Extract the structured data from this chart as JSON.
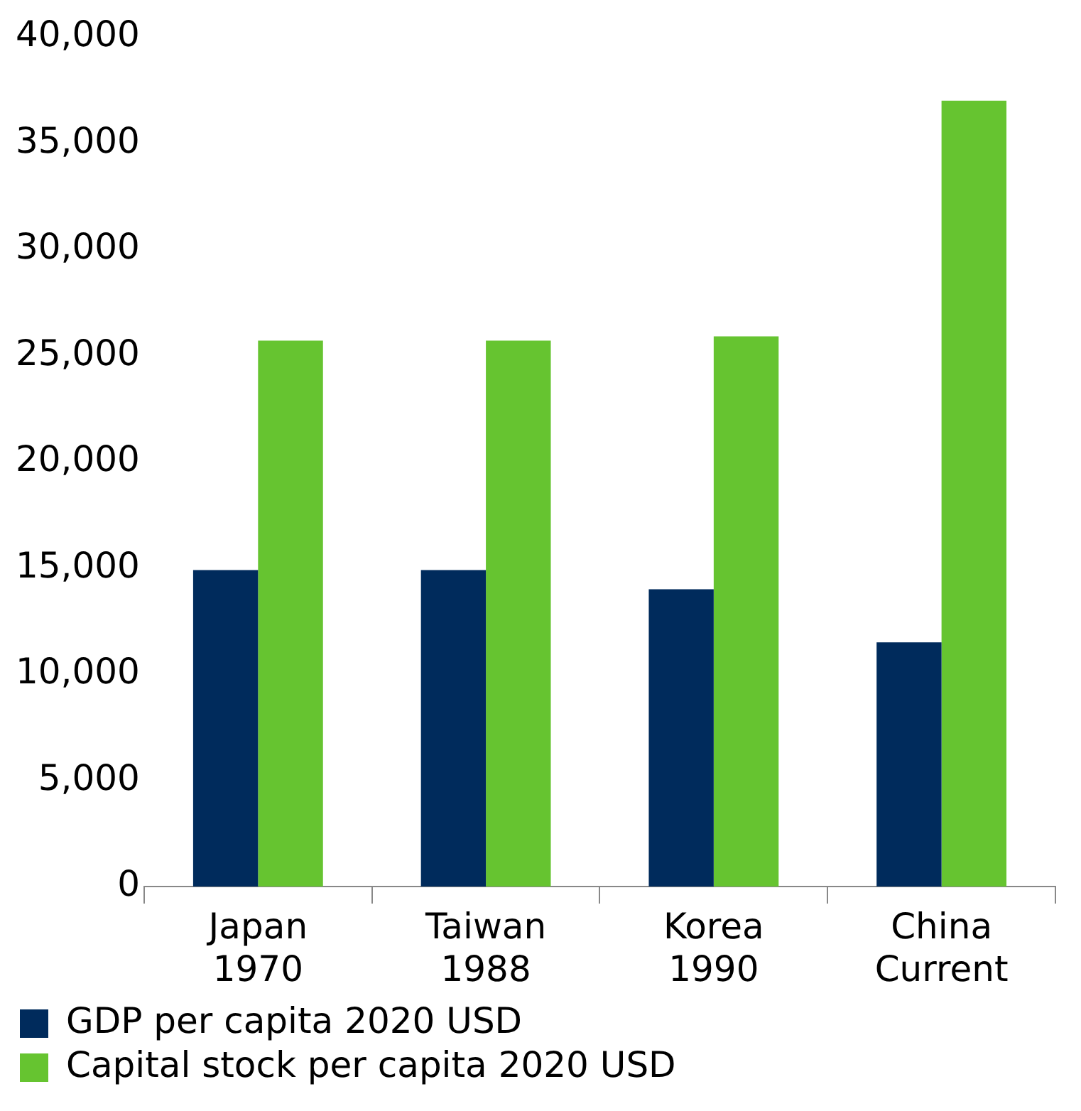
{
  "chart_data": {
    "type": "bar",
    "categories": [
      "Japan 1970",
      "Taiwan 1988",
      "Korea 1990",
      "China Current"
    ],
    "series": [
      {
        "name": "GDP per capita 2020 USD",
        "color": "#002b5c",
        "values": [
          14900,
          14900,
          14000,
          11500
        ]
      },
      {
        "name": "Capital stock per capita 2020 USD",
        "color": "#66c430",
        "values": [
          25700,
          25700,
          25900,
          37000
        ]
      }
    ],
    "ylim": [
      0,
      40000
    ],
    "yticks": [
      0,
      {
        "value": 5000,
        "label": "5,000"
      },
      {
        "value": 10000,
        "label": "10,000"
      },
      {
        "value": 15000,
        "label": "15,000"
      },
      {
        "value": 20000,
        "label": "20,000"
      },
      {
        "value": 25000,
        "label": "25,000"
      },
      {
        "value": 30000,
        "label": "30,000"
      },
      {
        "value": 35000,
        "label": "35,000"
      },
      {
        "value": 40000,
        "label": "40,000"
      }
    ],
    "grid": false,
    "legend": "bottom"
  }
}
